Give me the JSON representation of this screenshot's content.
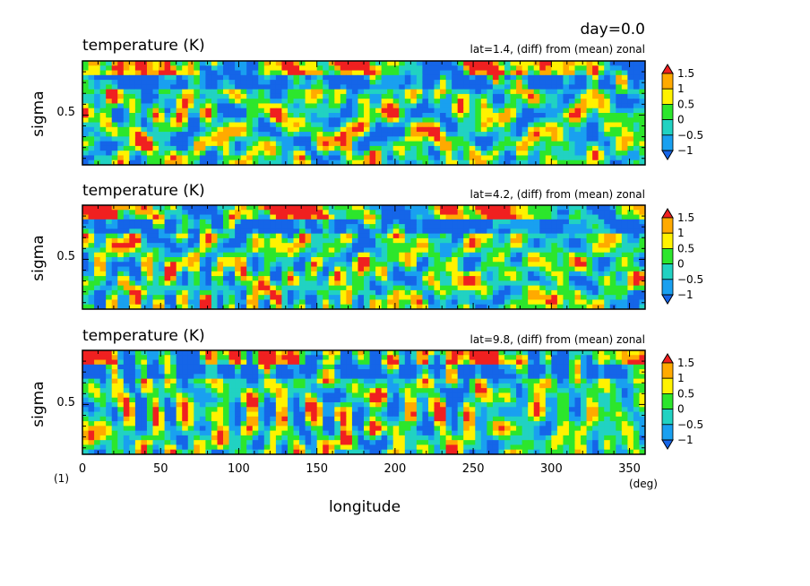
{
  "figure": {
    "day_label": "day=0.0",
    "figure_number": "(1)",
    "xlabel": "longitude",
    "xunit": "(deg)",
    "colormap": [
      "#1565e8",
      "#19a0f0",
      "#21d2c2",
      "#2ce62c",
      "#fff200",
      "#ffaa00",
      "#f02020"
    ]
  },
  "chart_data": [
    {
      "type": "heatmap",
      "title": "temperature (K)",
      "subtitle": "lat=1.4, (diff) from (mean) zonal",
      "xlabel": "longitude",
      "ylabel": "sigma",
      "xlim": [
        0,
        360
      ],
      "ylim": [
        0,
        1
      ],
      "yticks": [
        0.5
      ],
      "ytick_labels": [
        "0.5"
      ],
      "colorbar": {
        "levels": [
          -1.5,
          -1,
          -0.5,
          0,
          0.5,
          1,
          1.5
        ],
        "labels": [
          "1.5",
          "1",
          "0.5",
          "0",
          "−0.5",
          "−1"
        ]
      },
      "field": {
        "seed": 11,
        "surface_band": "red-lower",
        "notes_values_range": [
          -1.5,
          1.5
        ]
      }
    },
    {
      "type": "heatmap",
      "title": "temperature (K)",
      "subtitle": "lat=4.2, (diff) from (mean) zonal",
      "xlabel": "longitude",
      "ylabel": "sigma",
      "xlim": [
        0,
        360
      ],
      "ylim": [
        0,
        1
      ],
      "yticks": [
        0.5
      ],
      "ytick_labels": [
        "0.5"
      ],
      "colorbar": {
        "levels": [
          -1.5,
          -1,
          -0.5,
          0,
          0.5,
          1,
          1.5
        ],
        "labels": [
          "1.5",
          "1",
          "0.5",
          "0",
          "−0.5",
          "−1"
        ]
      },
      "field": {
        "seed": 23,
        "surface_band": "red-lower",
        "notes_values_range": [
          -1.5,
          1.5
        ]
      }
    },
    {
      "type": "heatmap",
      "title": "temperature (K)",
      "subtitle": "lat=9.8, (diff) from (mean) zonal",
      "xlabel": "longitude",
      "ylabel": "sigma",
      "xlim": [
        0,
        360
      ],
      "xticks": [
        0,
        50,
        100,
        150,
        200,
        250,
        300,
        350
      ],
      "xtick_labels": [
        "0",
        "50",
        "100",
        "150",
        "200",
        "250",
        "300",
        "350"
      ],
      "ylim": [
        0,
        1
      ],
      "yticks": [
        0.5
      ],
      "ytick_labels": [
        "0.5"
      ],
      "colorbar": {
        "levels": [
          -1.5,
          -1,
          -0.5,
          0,
          0.5,
          1,
          1.5
        ],
        "labels": [
          "1.5",
          "1",
          "0.5",
          "0",
          "−0.5",
          "−1"
        ]
      },
      "field": {
        "seed": 37,
        "surface_band": "red-lower",
        "notes_values_range": [
          -1.5,
          1.5
        ]
      }
    }
  ]
}
